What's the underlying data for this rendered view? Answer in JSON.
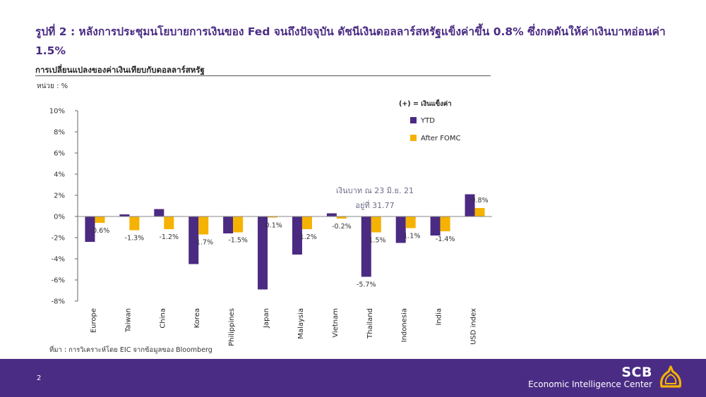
{
  "headline": "รูปที่ 2 : หลังการประชุมนโยบายการเงินของ Fed จนถึงปัจจุบัน ดัชนีเงินดอลลาร์สหรัฐแข็งค่าขึ้น 0.8% ซึ่งกดดันให้ค่าเงินบาทอ่อนค่า 1.5%",
  "subtitle": "การเปลี่ยนแปลงของค่าเงินเทียบกับดอลลาร์สหรัฐ",
  "unit": "หน่วย : %",
  "source": "ที่มา : การวิเคราะห์โดย EIC จากข้อมูลของ Bloomberg",
  "page_number": "2",
  "brand": {
    "name": "SCB",
    "subtitle": "Economic Intelligence Center"
  },
  "colors": {
    "ytd": "#4b2a82",
    "fomc": "#f5b200",
    "brand": "#4a2c84",
    "logo": "#f5b200"
  },
  "chart_data": {
    "type": "bar",
    "categories": [
      "Europe",
      "Taiwan",
      "China",
      "Korea",
      "Philippines",
      "Japan",
      "Malaysia",
      "Vietnam",
      "Thailand",
      "Indonesia",
      "India",
      "USD index"
    ],
    "series": [
      {
        "name": "YTD",
        "values": [
          -2.4,
          0.2,
          0.7,
          -4.5,
          -1.6,
          -6.9,
          -3.6,
          0.3,
          -5.7,
          -2.5,
          -1.8,
          2.1
        ]
      },
      {
        "name": "After FOMC",
        "values": [
          -0.6,
          -1.3,
          -1.2,
          -1.7,
          -1.5,
          -0.1,
          -1.2,
          -0.2,
          -1.5,
          -1.1,
          -1.4,
          0.8
        ]
      }
    ],
    "data_labels": [
      {
        "category": "Europe",
        "series": 1,
        "text": "-0.6%"
      },
      {
        "category": "Taiwan",
        "series": 1,
        "text": "-1.3%"
      },
      {
        "category": "China",
        "series": 1,
        "text": "-1.2%"
      },
      {
        "category": "Korea",
        "series": 1,
        "text": "-1.7%"
      },
      {
        "category": "Philippines",
        "series": 1,
        "text": "-1.5%"
      },
      {
        "category": "Japan",
        "series": 1,
        "text": "-0.1%"
      },
      {
        "category": "Malaysia",
        "series": 1,
        "text": "-1.2%"
      },
      {
        "category": "Vietnam",
        "series": 1,
        "text": "-0.2%"
      },
      {
        "category": "Thailand",
        "series": 0,
        "text": "-5.7%"
      },
      {
        "category": "Thailand",
        "series": 1,
        "text": "-1.5%"
      },
      {
        "category": "Indonesia",
        "series": 1,
        "text": "-1.1%"
      },
      {
        "category": "India",
        "series": 1,
        "text": "-1.4%"
      },
      {
        "category": "USD index",
        "series": 1,
        "text": "0.8%"
      }
    ],
    "yticks": [
      "10%",
      "8%",
      "6%",
      "4%",
      "2%",
      "0%",
      "-2%",
      "-4%",
      "-6%",
      "-8%"
    ],
    "ylim": [
      -8,
      10
    ],
    "legend_title": "(+) = เงินแข็งค่า",
    "legend_position": "top-right",
    "annotation": {
      "line1": "เงินบาท ณ 23 มิ.ย. 21",
      "line2": "อยู่ที่ 31.77"
    },
    "grid": false
  }
}
